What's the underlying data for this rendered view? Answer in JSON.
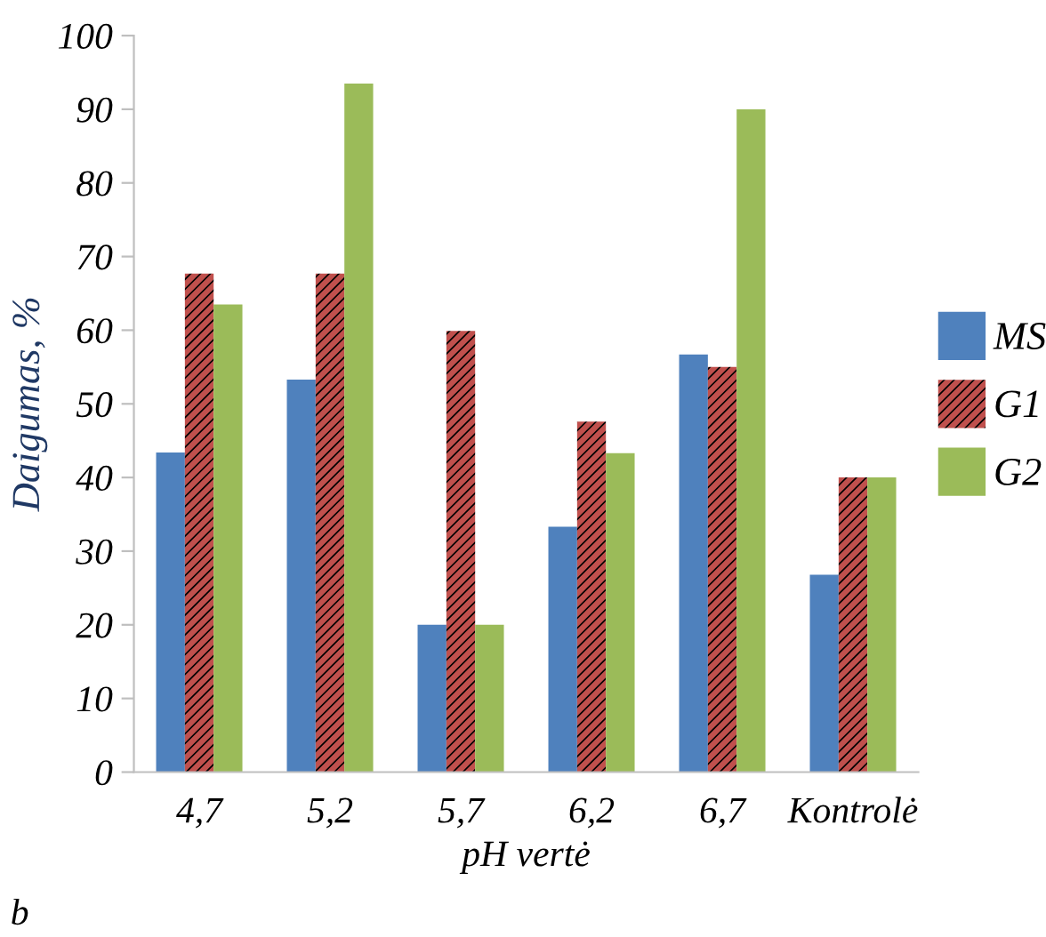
{
  "chart_data": {
    "type": "bar",
    "xlabel": "pH vertė",
    "ylabel": "Daigumas, %",
    "categories": [
      "4,7",
      "5,2",
      "5,7",
      "6,2",
      "6,7",
      "Kontrolė"
    ],
    "series": [
      {
        "name": "MS",
        "color": "#4f81bd",
        "values": [
          43.4,
          53.3,
          20,
          33.3,
          56.7,
          26.8
        ]
      },
      {
        "name": "G1",
        "color": "#c0504d",
        "values": [
          67.7,
          67.7,
          59.9,
          47.6,
          55,
          40
        ]
      },
      {
        "name": "G2",
        "color": "#9bbb59",
        "values": [
          63.5,
          93.5,
          20,
          43.3,
          90,
          40
        ]
      }
    ],
    "ylim": [
      0,
      100
    ],
    "yticks": [
      0,
      10,
      20,
      30,
      40,
      50,
      60,
      70,
      80,
      90,
      100
    ],
    "grid": false,
    "legend": "right",
    "annotations": [
      "b"
    ]
  }
}
